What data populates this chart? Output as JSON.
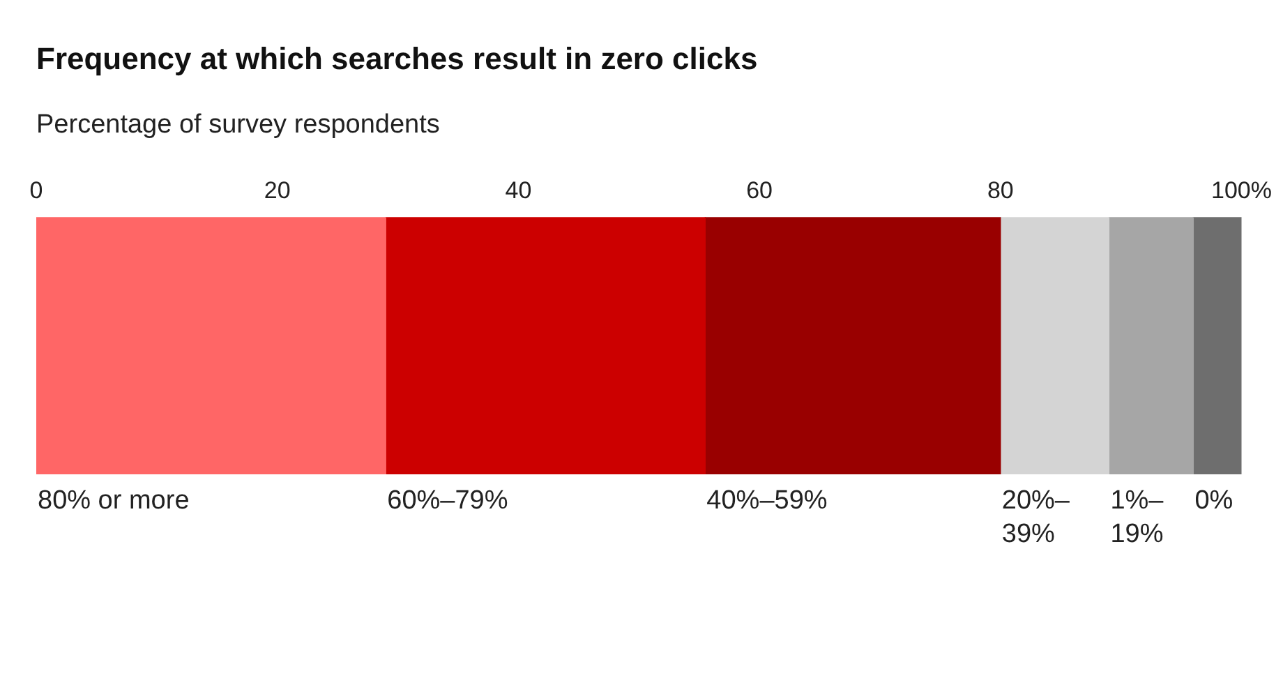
{
  "chart_data": {
    "type": "bar",
    "title": "Frequency at which searches result in zero clicks",
    "subtitle": "Percentage of survey respondents",
    "orientation": "horizontal",
    "stacked": true,
    "categories": [
      null
    ],
    "xlim": [
      0,
      100
    ],
    "xticks": [
      0,
      20,
      40,
      60,
      80,
      {
        "value": 100,
        "label": "100%"
      }
    ],
    "grid": false,
    "legend": false,
    "tick_labels": "x",
    "series": [
      {
        "name": "80% or more",
        "color": "#ff6666",
        "values": [
          29
        ]
      },
      {
        "name": "60%–79%",
        "color": "#cc0000",
        "values": [
          26.5
        ]
      },
      {
        "name": "40%–59%",
        "color": "#990000",
        "values": [
          24.5
        ]
      },
      {
        "name": "20%–39%",
        "color": "#d4d4d4",
        "values": [
          9
        ]
      },
      {
        "name": "1%–19%",
        "color": "#a6a6a6",
        "values": [
          7
        ]
      },
      {
        "name": "0%",
        "color": "#6e6e6e",
        "values": [
          4
        ]
      }
    ]
  }
}
